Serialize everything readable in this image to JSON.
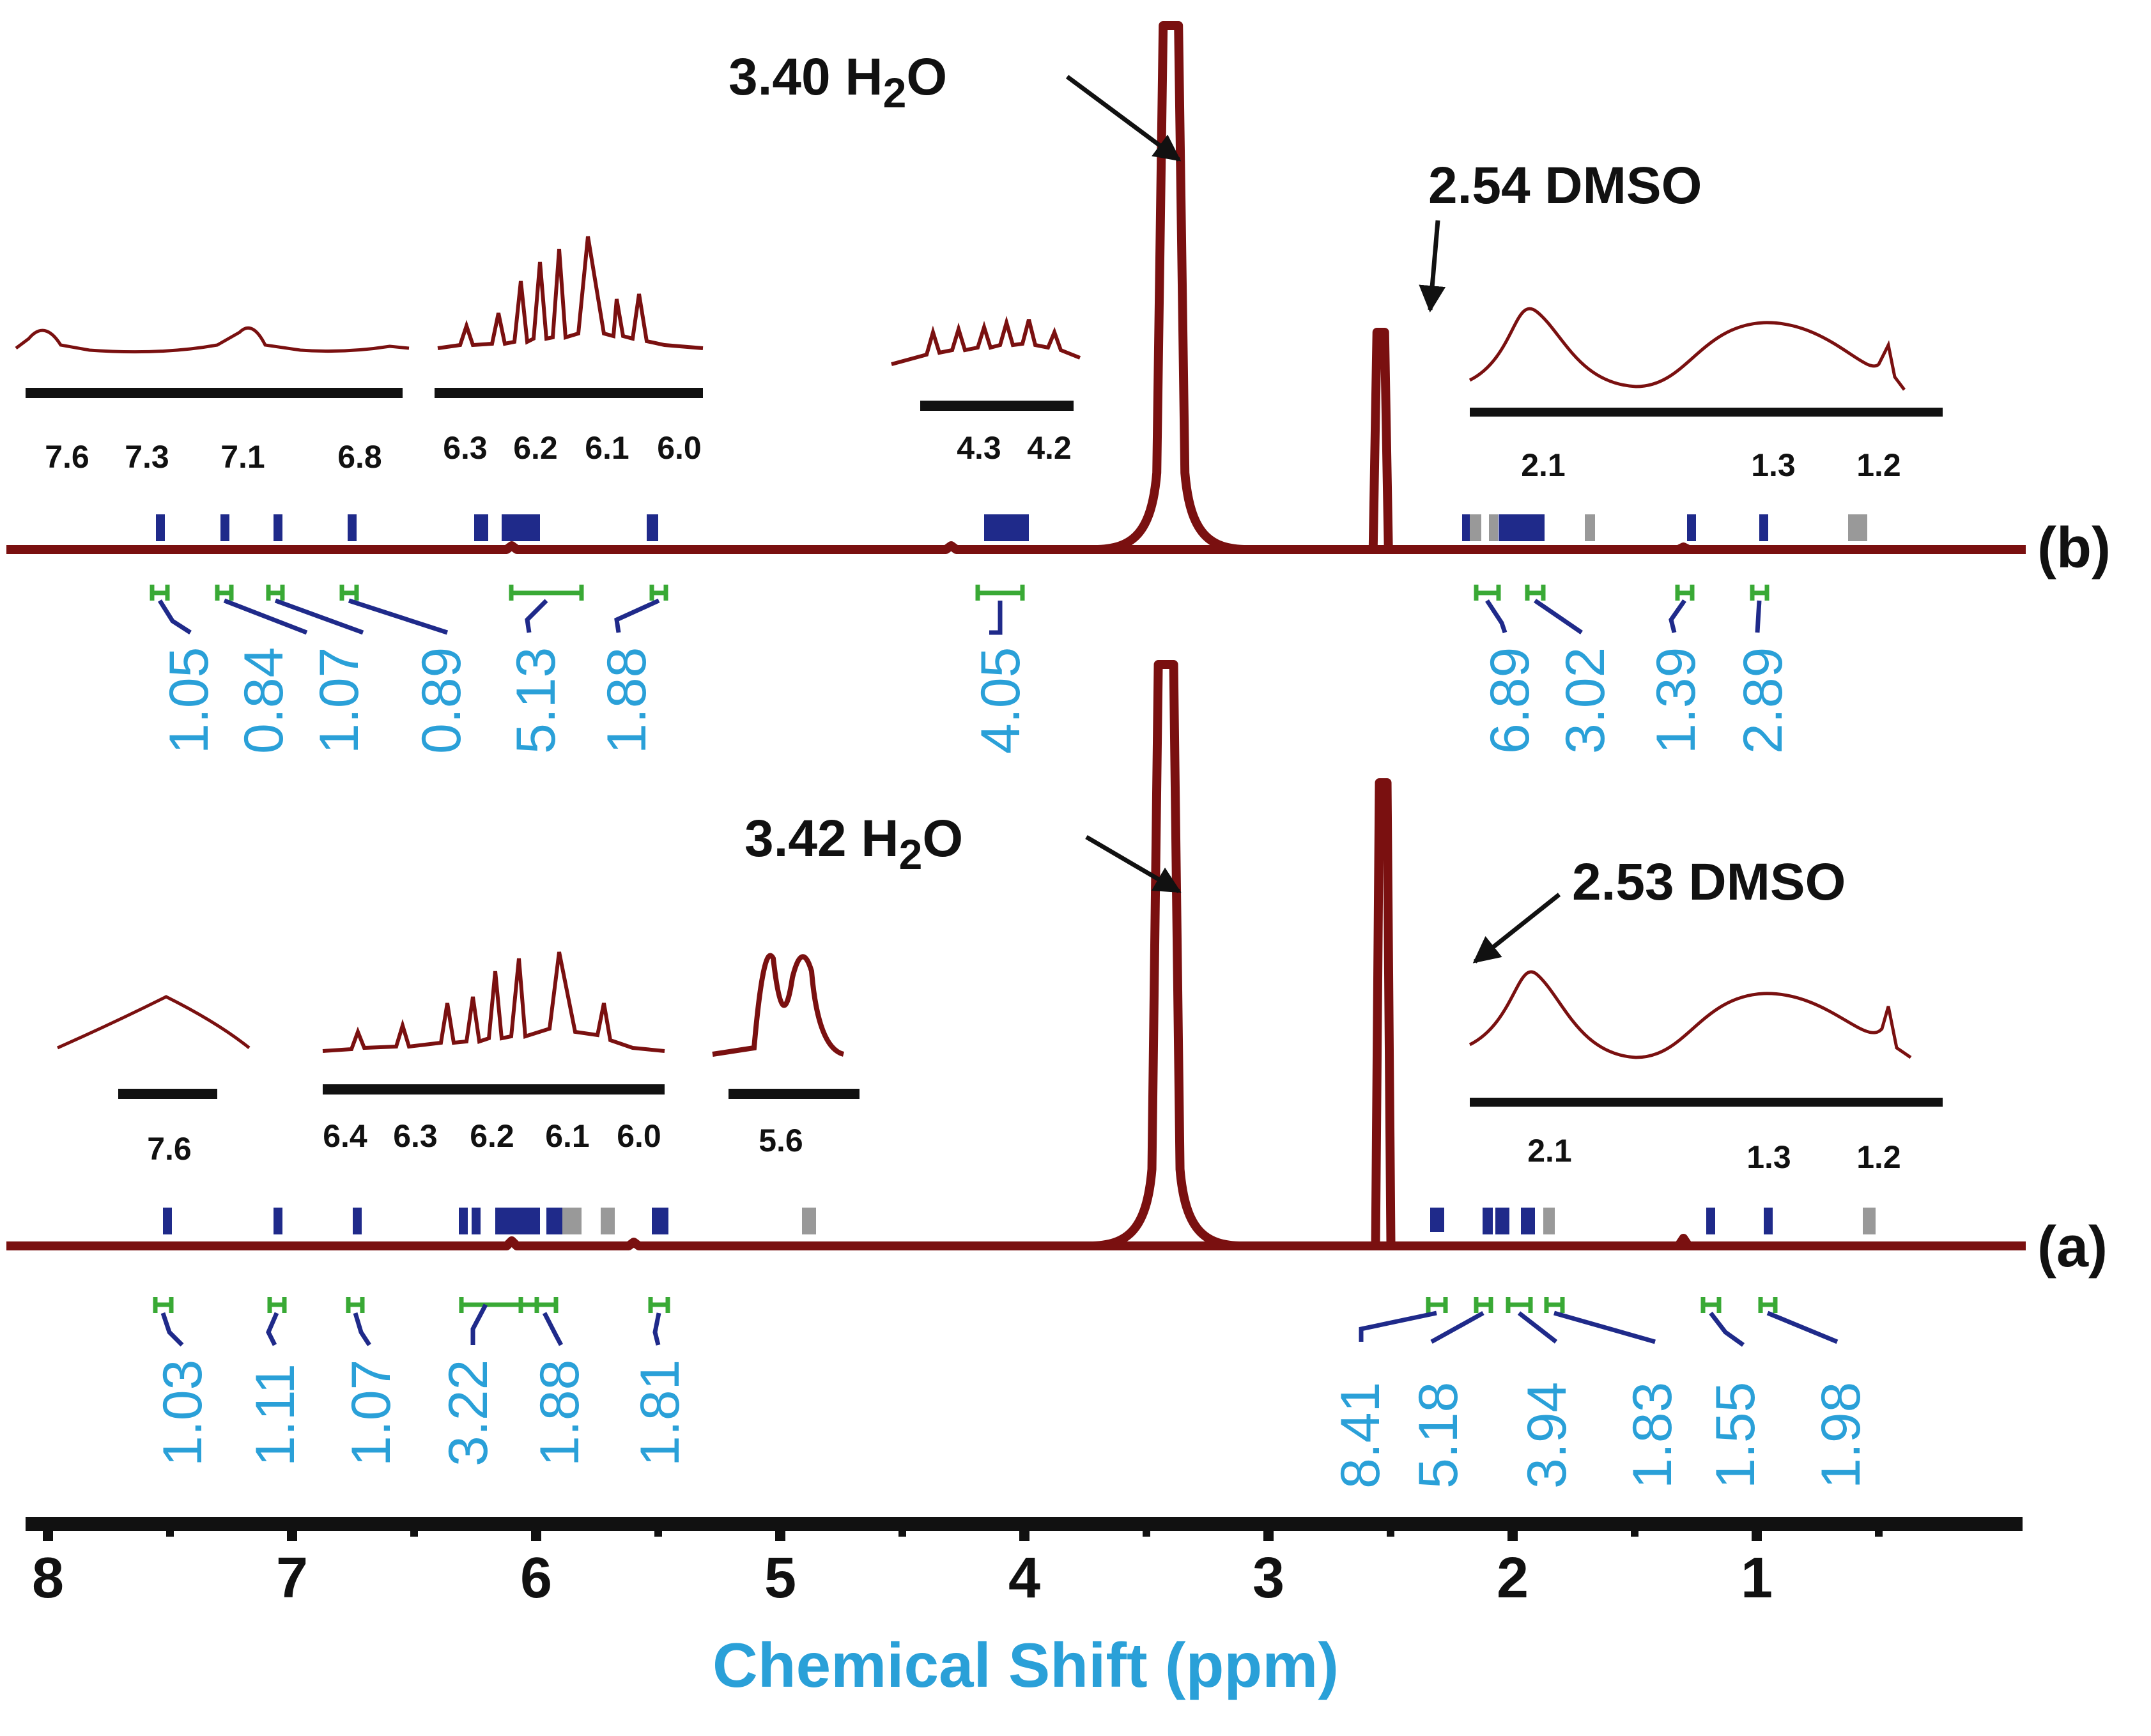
{
  "chart_data": {
    "type": "line",
    "xlabel": "Chemical Shift (ppm)",
    "x_axis": {
      "range": [
        8.0,
        0.2
      ],
      "ticks": [
        "8",
        "7",
        "6",
        "5",
        "4",
        "3",
        "2",
        "1"
      ]
    },
    "colors": {
      "trace": "#7a1010",
      "integral": "#2aa0d8",
      "peak_marker": "#1f2a8a",
      "integral_bracket": "#39a935",
      "highlight": "#e02020"
    },
    "series": [
      {
        "name": "(b)",
        "water_label": "3.40 H2O",
        "water_shift": 3.4,
        "dmso_label": "2.54 DMSO",
        "dmso_shift": 2.54,
        "integrals": [
          "1.05",
          "0.84",
          "1.07",
          "0.89",
          "5.13",
          "1.88",
          "4.05",
          "6.89",
          "3.02",
          "1.39",
          "2.89"
        ],
        "insets": [
          {
            "ticks": [
              "7.6",
              "7.3",
              "7.1",
              "6.8"
            ]
          },
          {
            "ticks": [
              "6.3",
              "6.2",
              "6.1",
              "6.0"
            ]
          },
          {
            "ticks": [
              "4.3",
              "4.2"
            ]
          },
          {
            "ticks": [
              "2.1",
              "1.3",
              "1.2"
            ]
          }
        ]
      },
      {
        "name": "(a)",
        "water_label": "3.42 H2O",
        "water_shift": 3.42,
        "dmso_label": "2.53 DMSO",
        "dmso_shift": 2.53,
        "integrals": [
          "1.03",
          "1.11",
          "1.07",
          "3.22",
          "1.88",
          "1.81",
          "8.41",
          "5.18",
          "3.94",
          "1.83",
          "1.55",
          "1.98"
        ],
        "insets": [
          {
            "ticks": [
              "7.6"
            ]
          },
          {
            "ticks": [
              "6.4",
              "6.3",
              "6.2",
              "6.1",
              "6.0"
            ]
          },
          {
            "ticks": [
              "5.6"
            ]
          },
          {
            "ticks": [
              "2.1",
              "1.3",
              "1.2"
            ]
          }
        ]
      }
    ]
  }
}
